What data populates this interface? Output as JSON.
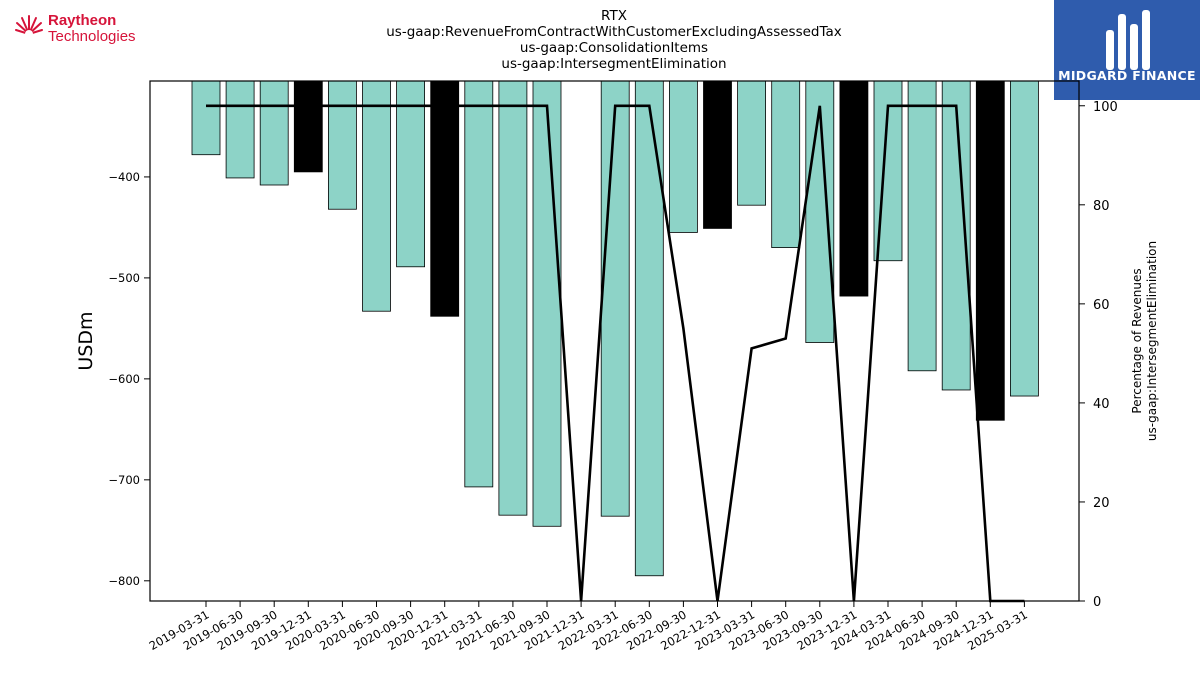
{
  "branding": {
    "company_name": "Raytheon",
    "company_sub": "Technologies",
    "watermark_name": "MIDGARD FINANCE"
  },
  "chart_data": {
    "type": "bar",
    "title_lines": [
      "RTX",
      "us-gaap:RevenueFromContractWithCustomerExcludingAssessedTax",
      "us-gaap:ConsolidationItems",
      "us-gaap:IntersegmentElimination"
    ],
    "ylabel": "USDm",
    "ylabel_right_lines": [
      "Percentage of Revenues",
      "us-gaap:IntersegmentElimination"
    ],
    "ylim": [
      -820,
      -305
    ],
    "ylim_right": [
      0,
      105
    ],
    "yticks": [
      -400,
      -500,
      -600,
      -700,
      -800
    ],
    "yticks_right": [
      0,
      20,
      40,
      60,
      80,
      100
    ],
    "categories": [
      "2019-03-31",
      "2019-06-30",
      "2019-09-30",
      "2019-12-31",
      "2020-03-31",
      "2020-06-30",
      "2020-09-30",
      "2020-12-31",
      "2021-03-31",
      "2021-06-30",
      "2021-09-30",
      "2021-12-31",
      "2022-03-31",
      "2022-06-30",
      "2022-09-30",
      "2022-12-31",
      "2023-03-31",
      "2023-06-30",
      "2023-09-30",
      "2023-12-31",
      "2024-03-31",
      "2024-06-30",
      "2024-09-30",
      "2024-12-31",
      "2025-03-31"
    ],
    "values": [
      -378,
      -401,
      -408,
      -395,
      -432,
      -533,
      -489,
      -538,
      -707,
      -735,
      -746,
      null,
      -736,
      -795,
      -455,
      -451,
      -428,
      -470,
      -564,
      -518,
      -483,
      -592,
      -611,
      -641,
      -617
    ],
    "highlight": [
      false,
      false,
      false,
      true,
      false,
      false,
      false,
      true,
      false,
      false,
      false,
      false,
      false,
      false,
      false,
      true,
      false,
      false,
      false,
      true,
      false,
      false,
      false,
      true,
      false
    ],
    "series": [
      {
        "axis": "right",
        "values": [
          100,
          100,
          100,
          100,
          100,
          100,
          100,
          100,
          100,
          100,
          100,
          0,
          100,
          100,
          55,
          0,
          51,
          53,
          100,
          0,
          100,
          100,
          100,
          0,
          0
        ]
      }
    ],
    "colors": {
      "bar": "#8dd3c7",
      "highlight_bar": "#000000",
      "line": "#000000"
    },
    "grid": false,
    "legend": "none"
  }
}
